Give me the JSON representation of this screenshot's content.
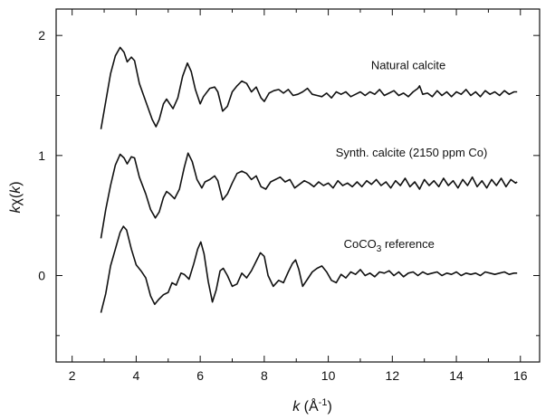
{
  "chart_data": {
    "type": "line",
    "xlabel": {
      "var": "k",
      "unit_pre": " (Å",
      "unit_sup": "-1",
      "unit_post": ")"
    },
    "ylabel": {
      "pre": "k",
      "chi": "χ",
      "open": "(",
      "var": "k",
      "close": ")"
    },
    "xlim": [
      1.5,
      16.6
    ],
    "ylim": [
      -0.72,
      2.22
    ],
    "xticks_labeled": [
      2,
      4,
      6,
      8,
      10,
      12,
      14,
      16
    ],
    "xticks_minor": [
      3,
      5,
      7,
      9,
      11,
      13,
      15
    ],
    "yticks_labeled": [
      0,
      1,
      2
    ],
    "yticks_minor": [
      -0.5,
      0.5,
      1.5
    ],
    "grid": false,
    "legend": "none",
    "series": [
      {
        "name": "Natural calcite",
        "points": [
          [
            2.9,
            1.22
          ],
          [
            3.05,
            1.45
          ],
          [
            3.2,
            1.68
          ],
          [
            3.35,
            1.83
          ],
          [
            3.5,
            1.9
          ],
          [
            3.62,
            1.86
          ],
          [
            3.72,
            1.78
          ],
          [
            3.85,
            1.82
          ],
          [
            3.95,
            1.79
          ],
          [
            4.1,
            1.6
          ],
          [
            4.3,
            1.45
          ],
          [
            4.5,
            1.3
          ],
          [
            4.62,
            1.24
          ],
          [
            4.72,
            1.3
          ],
          [
            4.85,
            1.43
          ],
          [
            4.95,
            1.47
          ],
          [
            5.05,
            1.43
          ],
          [
            5.15,
            1.39
          ],
          [
            5.3,
            1.48
          ],
          [
            5.45,
            1.66
          ],
          [
            5.6,
            1.77
          ],
          [
            5.72,
            1.7
          ],
          [
            5.85,
            1.55
          ],
          [
            6.0,
            1.43
          ],
          [
            6.1,
            1.49
          ],
          [
            6.3,
            1.56
          ],
          [
            6.45,
            1.57
          ],
          [
            6.55,
            1.53
          ],
          [
            6.7,
            1.37
          ],
          [
            6.85,
            1.41
          ],
          [
            7.0,
            1.53
          ],
          [
            7.15,
            1.58
          ],
          [
            7.3,
            1.62
          ],
          [
            7.45,
            1.6
          ],
          [
            7.6,
            1.53
          ],
          [
            7.75,
            1.57
          ],
          [
            7.9,
            1.48
          ],
          [
            8.0,
            1.45
          ],
          [
            8.15,
            1.52
          ],
          [
            8.3,
            1.54
          ],
          [
            8.45,
            1.55
          ],
          [
            8.6,
            1.52
          ],
          [
            8.75,
            1.55
          ],
          [
            8.9,
            1.5
          ],
          [
            9.05,
            1.51
          ],
          [
            9.2,
            1.53
          ],
          [
            9.35,
            1.56
          ],
          [
            9.5,
            1.51
          ],
          [
            9.65,
            1.5
          ],
          [
            9.8,
            1.49
          ],
          [
            9.95,
            1.52
          ],
          [
            10.1,
            1.48
          ],
          [
            10.25,
            1.53
          ],
          [
            10.4,
            1.51
          ],
          [
            10.55,
            1.53
          ],
          [
            10.7,
            1.49
          ],
          [
            10.85,
            1.51
          ],
          [
            11.0,
            1.53
          ],
          [
            11.15,
            1.5
          ],
          [
            11.3,
            1.53
          ],
          [
            11.45,
            1.51
          ],
          [
            11.6,
            1.55
          ],
          [
            11.75,
            1.5
          ],
          [
            11.9,
            1.52
          ],
          [
            12.05,
            1.54
          ],
          [
            12.2,
            1.5
          ],
          [
            12.35,
            1.52
          ],
          [
            12.5,
            1.49
          ],
          [
            12.65,
            1.53
          ],
          [
            12.8,
            1.56
          ],
          [
            12.85,
            1.58
          ],
          [
            12.95,
            1.51
          ],
          [
            13.1,
            1.52
          ],
          [
            13.25,
            1.49
          ],
          [
            13.4,
            1.54
          ],
          [
            13.55,
            1.5
          ],
          [
            13.7,
            1.53
          ],
          [
            13.85,
            1.49
          ],
          [
            14.0,
            1.53
          ],
          [
            14.15,
            1.51
          ],
          [
            14.3,
            1.55
          ],
          [
            14.45,
            1.5
          ],
          [
            14.6,
            1.53
          ],
          [
            14.75,
            1.49
          ],
          [
            14.9,
            1.54
          ],
          [
            15.05,
            1.51
          ],
          [
            15.2,
            1.53
          ],
          [
            15.35,
            1.5
          ],
          [
            15.5,
            1.54
          ],
          [
            15.65,
            1.51
          ],
          [
            15.8,
            1.53
          ],
          [
            15.9,
            1.53
          ]
        ]
      },
      {
        "name": "Synth. calcite (2150 ppm Co)",
        "points": [
          [
            2.9,
            0.31
          ],
          [
            3.05,
            0.55
          ],
          [
            3.2,
            0.75
          ],
          [
            3.35,
            0.92
          ],
          [
            3.5,
            1.01
          ],
          [
            3.62,
            0.98
          ],
          [
            3.72,
            0.93
          ],
          [
            3.85,
            0.99
          ],
          [
            3.95,
            0.98
          ],
          [
            4.1,
            0.82
          ],
          [
            4.3,
            0.68
          ],
          [
            4.45,
            0.55
          ],
          [
            4.6,
            0.48
          ],
          [
            4.72,
            0.53
          ],
          [
            4.85,
            0.65
          ],
          [
            4.95,
            0.7
          ],
          [
            5.05,
            0.68
          ],
          [
            5.2,
            0.64
          ],
          [
            5.35,
            0.72
          ],
          [
            5.5,
            0.9
          ],
          [
            5.62,
            1.02
          ],
          [
            5.75,
            0.95
          ],
          [
            5.9,
            0.8
          ],
          [
            6.05,
            0.73
          ],
          [
            6.15,
            0.78
          ],
          [
            6.3,
            0.8
          ],
          [
            6.45,
            0.83
          ],
          [
            6.55,
            0.79
          ],
          [
            6.7,
            0.63
          ],
          [
            6.85,
            0.68
          ],
          [
            7.0,
            0.77
          ],
          [
            7.15,
            0.85
          ],
          [
            7.3,
            0.87
          ],
          [
            7.45,
            0.85
          ],
          [
            7.6,
            0.8
          ],
          [
            7.75,
            0.83
          ],
          [
            7.9,
            0.74
          ],
          [
            8.05,
            0.72
          ],
          [
            8.2,
            0.78
          ],
          [
            8.35,
            0.8
          ],
          [
            8.5,
            0.82
          ],
          [
            8.65,
            0.78
          ],
          [
            8.8,
            0.8
          ],
          [
            8.95,
            0.73
          ],
          [
            9.1,
            0.76
          ],
          [
            9.25,
            0.79
          ],
          [
            9.4,
            0.77
          ],
          [
            9.55,
            0.74
          ],
          [
            9.7,
            0.78
          ],
          [
            9.85,
            0.75
          ],
          [
            10.0,
            0.77
          ],
          [
            10.15,
            0.73
          ],
          [
            10.3,
            0.79
          ],
          [
            10.45,
            0.75
          ],
          [
            10.6,
            0.77
          ],
          [
            10.75,
            0.74
          ],
          [
            10.9,
            0.78
          ],
          [
            11.05,
            0.74
          ],
          [
            11.2,
            0.79
          ],
          [
            11.35,
            0.76
          ],
          [
            11.5,
            0.8
          ],
          [
            11.65,
            0.75
          ],
          [
            11.8,
            0.78
          ],
          [
            11.95,
            0.73
          ],
          [
            12.1,
            0.79
          ],
          [
            12.25,
            0.75
          ],
          [
            12.4,
            0.81
          ],
          [
            12.55,
            0.74
          ],
          [
            12.7,
            0.78
          ],
          [
            12.85,
            0.72
          ],
          [
            13.0,
            0.8
          ],
          [
            13.15,
            0.75
          ],
          [
            13.3,
            0.79
          ],
          [
            13.45,
            0.74
          ],
          [
            13.6,
            0.81
          ],
          [
            13.75,
            0.75
          ],
          [
            13.9,
            0.79
          ],
          [
            14.05,
            0.73
          ],
          [
            14.2,
            0.8
          ],
          [
            14.35,
            0.75
          ],
          [
            14.5,
            0.82
          ],
          [
            14.65,
            0.74
          ],
          [
            14.8,
            0.79
          ],
          [
            14.95,
            0.73
          ],
          [
            15.1,
            0.8
          ],
          [
            15.25,
            0.75
          ],
          [
            15.4,
            0.81
          ],
          [
            15.55,
            0.74
          ],
          [
            15.7,
            0.8
          ],
          [
            15.85,
            0.77
          ],
          [
            15.9,
            0.78
          ]
        ]
      },
      {
        "name": "CoCO",
        "name_sub": "3",
        "name_post": " reference",
        "points": [
          [
            2.9,
            -0.31
          ],
          [
            3.05,
            -0.15
          ],
          [
            3.2,
            0.08
          ],
          [
            3.35,
            0.22
          ],
          [
            3.5,
            0.36
          ],
          [
            3.6,
            0.41
          ],
          [
            3.7,
            0.38
          ],
          [
            3.85,
            0.22
          ],
          [
            4.0,
            0.09
          ],
          [
            4.15,
            0.04
          ],
          [
            4.3,
            -0.02
          ],
          [
            4.45,
            -0.17
          ],
          [
            4.58,
            -0.24
          ],
          [
            4.7,
            -0.2
          ],
          [
            4.85,
            -0.16
          ],
          [
            5.0,
            -0.14
          ],
          [
            5.12,
            -0.06
          ],
          [
            5.25,
            -0.08
          ],
          [
            5.4,
            0.02
          ],
          [
            5.5,
            0.01
          ],
          [
            5.65,
            -0.03
          ],
          [
            5.8,
            0.1
          ],
          [
            5.92,
            0.22
          ],
          [
            6.02,
            0.28
          ],
          [
            6.12,
            0.18
          ],
          [
            6.25,
            -0.05
          ],
          [
            6.38,
            -0.22
          ],
          [
            6.5,
            -0.12
          ],
          [
            6.62,
            0.04
          ],
          [
            6.72,
            0.06
          ],
          [
            6.85,
            0.0
          ],
          [
            7.0,
            -0.09
          ],
          [
            7.15,
            -0.07
          ],
          [
            7.3,
            0.02
          ],
          [
            7.45,
            -0.02
          ],
          [
            7.6,
            0.04
          ],
          [
            7.75,
            0.12
          ],
          [
            7.88,
            0.19
          ],
          [
            8.0,
            0.16
          ],
          [
            8.12,
            0.0
          ],
          [
            8.28,
            -0.09
          ],
          [
            8.45,
            -0.04
          ],
          [
            8.6,
            -0.06
          ],
          [
            8.75,
            0.03
          ],
          [
            8.88,
            0.1
          ],
          [
            8.98,
            0.13
          ],
          [
            9.08,
            0.05
          ],
          [
            9.2,
            -0.09
          ],
          [
            9.35,
            -0.03
          ],
          [
            9.5,
            0.03
          ],
          [
            9.65,
            0.06
          ],
          [
            9.8,
            0.08
          ],
          [
            9.95,
            0.03
          ],
          [
            10.1,
            -0.04
          ],
          [
            10.25,
            -0.06
          ],
          [
            10.4,
            0.01
          ],
          [
            10.55,
            -0.02
          ],
          [
            10.7,
            0.03
          ],
          [
            10.85,
            0.01
          ],
          [
            11.0,
            0.05
          ],
          [
            11.15,
            0.0
          ],
          [
            11.3,
            0.02
          ],
          [
            11.45,
            -0.01
          ],
          [
            11.6,
            0.03
          ],
          [
            11.75,
            0.02
          ],
          [
            11.9,
            0.04
          ],
          [
            12.05,
            0.0
          ],
          [
            12.2,
            0.03
          ],
          [
            12.35,
            -0.01
          ],
          [
            12.5,
            0.02
          ],
          [
            12.65,
            0.03
          ],
          [
            12.8,
            0.0
          ],
          [
            12.95,
            0.03
          ],
          [
            13.1,
            0.01
          ],
          [
            13.25,
            0.02
          ],
          [
            13.4,
            0.03
          ],
          [
            13.55,
            0.0
          ],
          [
            13.7,
            0.02
          ],
          [
            13.85,
            0.01
          ],
          [
            14.0,
            0.03
          ],
          [
            14.15,
            0.0
          ],
          [
            14.3,
            0.02
          ],
          [
            14.45,
            0.01
          ],
          [
            14.6,
            0.02
          ],
          [
            14.75,
            0.0
          ],
          [
            14.9,
            0.03
          ],
          [
            15.05,
            0.02
          ],
          [
            15.2,
            0.01
          ],
          [
            15.35,
            0.02
          ],
          [
            15.5,
            0.03
          ],
          [
            15.65,
            0.01
          ],
          [
            15.8,
            0.02
          ],
          [
            15.9,
            0.02
          ]
        ]
      }
    ],
    "annotations": [
      {
        "series": 0,
        "x": 12.5,
        "y": 1.72
      },
      {
        "series": 1,
        "x": 12.6,
        "y": 0.99
      },
      {
        "series": 2,
        "x": 11.9,
        "y": 0.23
      }
    ]
  }
}
